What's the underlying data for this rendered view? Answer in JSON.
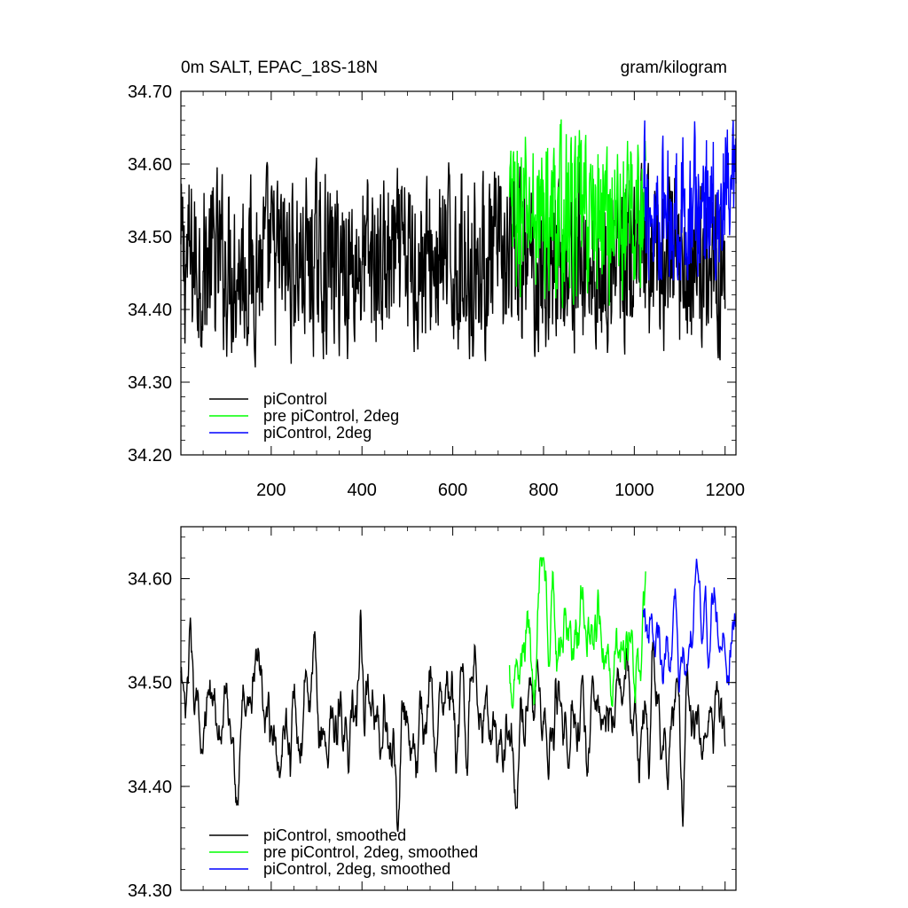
{
  "chart_data": [
    {
      "type": "line",
      "title": "0m SALT, EPAC_18S-18N",
      "units": "gram/kilogram",
      "xlim": [
        1,
        1224
      ],
      "ylim": [
        34.2,
        34.7
      ],
      "xticks": [
        200,
        400,
        600,
        800,
        1000,
        1200
      ],
      "xtick_labels": [
        "200",
        "400",
        "600",
        "800",
        "1000",
        "1200"
      ],
      "yticks": [
        34.2,
        34.3,
        34.4,
        34.5,
        34.6,
        34.7
      ],
      "ytick_labels": [
        "34.20",
        "34.30",
        "34.40",
        "34.50",
        "34.60",
        "34.70"
      ],
      "legend_position": "bottom-left",
      "series": [
        {
          "name": "piControl",
          "color": "#000000",
          "x_range": [
            1,
            1200
          ],
          "mean": 34.465,
          "amplitude": 0.065,
          "min": 34.29,
          "max": 34.63
        },
        {
          "name": "pre piControl, 2deg",
          "color": "#00ff00",
          "x_range": [
            725,
            1025
          ],
          "mean": 34.535,
          "amplitude": 0.06,
          "min": 34.37,
          "max": 34.68
        },
        {
          "name": "piControl, 2deg",
          "color": "#0000ff",
          "x_range": [
            1020,
            1224
          ],
          "mean": 34.535,
          "amplitude": 0.055,
          "min": 34.44,
          "max": 34.66
        }
      ]
    },
    {
      "type": "line",
      "title": "",
      "xlim": [
        1,
        1224
      ],
      "ylim": [
        34.3,
        34.65
      ],
      "xticks": [
        200,
        400,
        600,
        800,
        1000,
        1200
      ],
      "yticks": [
        34.3,
        34.4,
        34.5,
        34.6
      ],
      "ytick_labels": [
        "34.30",
        "34.40",
        "34.50",
        "34.60"
      ],
      "legend_position": "bottom-left",
      "series": [
        {
          "name": "piControl, smoothed",
          "color": "#000000",
          "x_range": [
            1,
            1200
          ],
          "mean": 34.465,
          "amplitude": 0.035,
          "min": 34.34,
          "max": 34.57
        },
        {
          "name": "pre piControl, 2deg, smoothed",
          "color": "#00ff00",
          "x_range": [
            725,
            1025
          ],
          "mean": 34.54,
          "amplitude": 0.035,
          "min": 34.44,
          "max": 34.62
        },
        {
          "name": "piControl, 2deg, smoothed",
          "color": "#0000ff",
          "x_range": [
            1020,
            1224
          ],
          "mean": 34.545,
          "amplitude": 0.03,
          "min": 34.47,
          "max": 34.645
        }
      ]
    }
  ]
}
